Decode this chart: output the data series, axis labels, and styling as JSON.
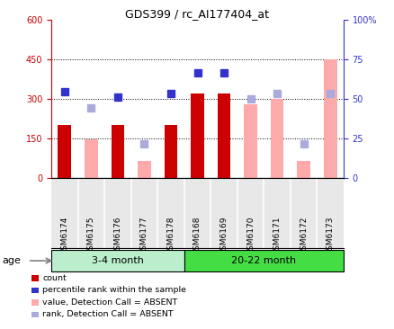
{
  "title": "GDS399 / rc_AI177404_at",
  "samples": [
    "GSM6174",
    "GSM6175",
    "GSM6176",
    "GSM6177",
    "GSM6178",
    "GSM6168",
    "GSM6169",
    "GSM6170",
    "GSM6171",
    "GSM6172",
    "GSM6173"
  ],
  "count": [
    200,
    null,
    200,
    null,
    200,
    320,
    320,
    null,
    null,
    null,
    null
  ],
  "percentile_rank": [
    325,
    null,
    305,
    null,
    320,
    400,
    400,
    null,
    null,
    null,
    null
  ],
  "value_absent": [
    null,
    145,
    null,
    65,
    null,
    null,
    null,
    280,
    300,
    65,
    450
  ],
  "rank_absent": [
    null,
    265,
    null,
    130,
    null,
    null,
    null,
    300,
    320,
    130,
    320
  ],
  "ylim_left": [
    0,
    600
  ],
  "ylim_right": [
    0,
    100
  ],
  "yticks_left": [
    0,
    150,
    300,
    450,
    600
  ],
  "yticks_right": [
    0,
    25,
    50,
    75,
    100
  ],
  "ytick_labels_right": [
    "0",
    "25",
    "50",
    "75",
    "100%"
  ],
  "left_axis_color": "#cc0000",
  "right_axis_color": "#3333cc",
  "bar_width": 0.5,
  "count_color": "#cc0000",
  "percentile_color": "#3333cc",
  "value_absent_color": "#ffaaaa",
  "rank_absent_color": "#aaaadd",
  "bg_color": "#e8e8e8",
  "plot_bg": "#ffffff",
  "age_label": "age",
  "group_positions": [
    {
      "start": 0,
      "end": 5,
      "label": "3-4 month",
      "color": "#bbeecc"
    },
    {
      "start": 5,
      "end": 11,
      "label": "20-22 month",
      "color": "#44dd44"
    }
  ],
  "legend_items": [
    {
      "label": "count",
      "color": "#cc0000"
    },
    {
      "label": "percentile rank within the sample",
      "color": "#3333cc"
    },
    {
      "label": "value, Detection Call = ABSENT",
      "color": "#ffaaaa"
    },
    {
      "label": "rank, Detection Call = ABSENT",
      "color": "#aaaadd"
    }
  ],
  "dotted_lines": [
    150,
    300,
    450
  ]
}
